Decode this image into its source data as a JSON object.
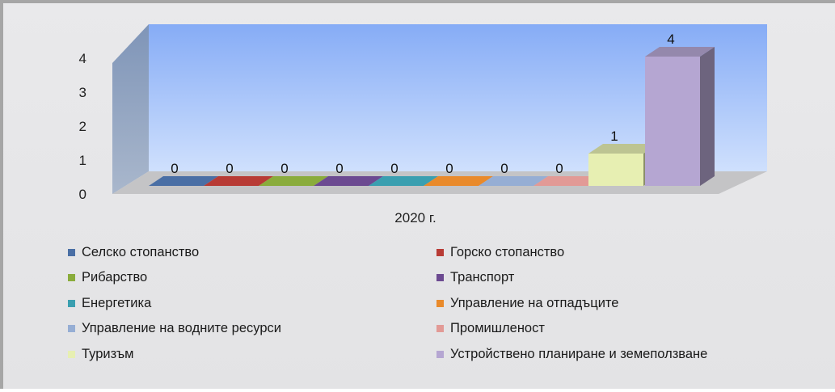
{
  "chart_data": {
    "type": "bar",
    "categories": [
      "2020 г."
    ],
    "ylim": [
      0,
      4
    ],
    "yticks": [
      0,
      1,
      2,
      3,
      4
    ],
    "series": [
      {
        "name": "Селско стопанство",
        "values": [
          0
        ],
        "color": "#4a6fa5"
      },
      {
        "name": "Горско стопанство",
        "values": [
          0
        ],
        "color": "#b83b35"
      },
      {
        "name": "Рибарство",
        "values": [
          0
        ],
        "color": "#8aac3c"
      },
      {
        "name": "Транспорт",
        "values": [
          0
        ],
        "color": "#6c4a91"
      },
      {
        "name": "Енергетика",
        "values": [
          0
        ],
        "color": "#3a9fb0"
      },
      {
        "name": "Управление на отпадъците",
        "values": [
          0
        ],
        "color": "#e98a2b"
      },
      {
        "name": "Управление на водните ресурси",
        "values": [
          0
        ],
        "color": "#96aed4"
      },
      {
        "name": "Промишленост",
        "values": [
          0
        ],
        "color": "#e29a96"
      },
      {
        "name": "Туризъм",
        "values": [
          1
        ],
        "color": "#e7efb2"
      },
      {
        "name": "Устройствено планиране и земеползване",
        "values": [
          4
        ],
        "color": "#b5a6d2"
      }
    ],
    "legend_position": "bottom",
    "grid": false
  }
}
